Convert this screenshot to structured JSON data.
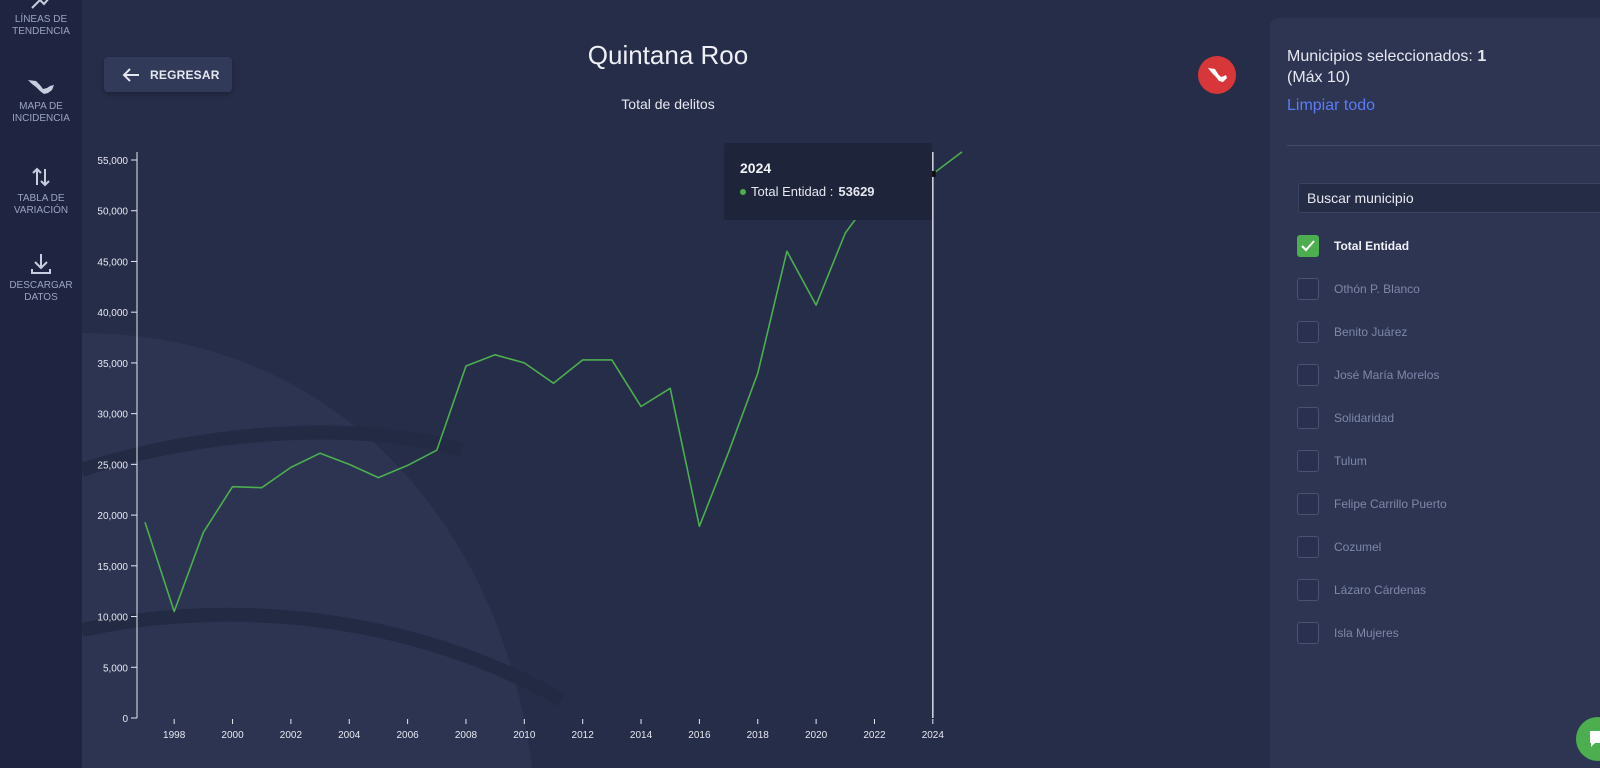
{
  "sidebar": {
    "items": [
      {
        "label": "LÍNEAS DE\nTENDENCIA",
        "icon": "trend-lines-icon"
      },
      {
        "label": "MAPA DE\nINCIDENCIA",
        "icon": "mexico-map-icon"
      },
      {
        "label": "TABLA DE\nVARIACIÓN",
        "icon": "up-down-arrows-icon"
      },
      {
        "label": "DESCARGAR\nDATOS",
        "icon": "download-icon"
      }
    ]
  },
  "header": {
    "back_label": "REGRESAR",
    "title": "Quintana Roo",
    "subtitle": "Total de delitos"
  },
  "tooltip": {
    "year": "2024",
    "series": "Total Entidad :",
    "value": "53629"
  },
  "panel": {
    "selected_label": "Municipios seleccionados:",
    "selected_count": "1",
    "max_label": "(Máx 10)",
    "clear_label": "Limpiar todo",
    "search_placeholder": "Buscar municipio",
    "municipios": [
      {
        "name": "Total Entidad",
        "checked": true
      },
      {
        "name": "Othón P. Blanco",
        "checked": false
      },
      {
        "name": "Benito Juárez",
        "checked": false
      },
      {
        "name": "José María Morelos",
        "checked": false
      },
      {
        "name": "Solidaridad",
        "checked": false
      },
      {
        "name": "Tulum",
        "checked": false
      },
      {
        "name": "Felipe Carrillo Puerto",
        "checked": false
      },
      {
        "name": "Cozumel",
        "checked": false
      },
      {
        "name": "Lázaro Cárdenas",
        "checked": false
      },
      {
        "name": "Isla Mujeres",
        "checked": false
      }
    ]
  },
  "colors": {
    "line": "#4cae4f",
    "accent_link": "#5b7cf4",
    "flag_badge": "#d8373a"
  },
  "chart_data": {
    "type": "line",
    "title": "Total de delitos",
    "xlabel": "",
    "ylabel": "",
    "xlim": [
      1997,
      2025
    ],
    "ylim": [
      0,
      55000
    ],
    "x_ticks": [
      1998,
      2000,
      2002,
      2004,
      2006,
      2008,
      2010,
      2012,
      2014,
      2016,
      2018,
      2020,
      2022,
      2024
    ],
    "y_ticks": [
      0,
      5000,
      10000,
      15000,
      20000,
      25000,
      30000,
      35000,
      40000,
      45000,
      50000,
      55000
    ],
    "grid": false,
    "highlight_x": 2024,
    "series": [
      {
        "name": "Total Entidad",
        "x": [
          1997,
          1998,
          1999,
          2000,
          2001,
          2002,
          2003,
          2004,
          2005,
          2006,
          2007,
          2008,
          2009,
          2010,
          2011,
          2012,
          2013,
          2014,
          2015,
          2016,
          2017,
          2018,
          2019,
          2020,
          2021,
          2022,
          2023,
          2024,
          2025
        ],
        "y": [
          19300,
          10500,
          18300,
          22800,
          22700,
          24700,
          26100,
          25000,
          23700,
          24900,
          26400,
          34700,
          35800,
          35000,
          33000,
          35300,
          35300,
          30700,
          32500,
          18900,
          26200,
          34000,
          46000,
          40700,
          47800,
          51700,
          54200,
          53629,
          55800
        ]
      }
    ]
  }
}
